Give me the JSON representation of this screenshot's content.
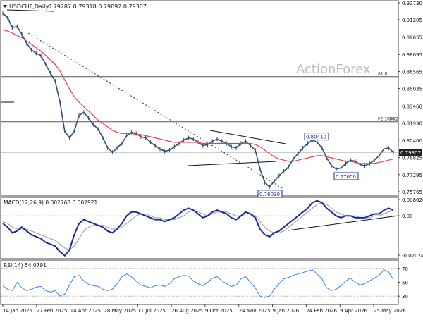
{
  "header": {
    "symbol": "USDCHF,Daily",
    "ohlc": "0.79287 0.79318 0.79092 0.79307"
  },
  "watermark": "ActionForex",
  "price_axis": [
    "0.92730",
    "0.91205",
    "0.89655",
    "0.88095",
    "0.86565",
    "0.85035",
    "0.83460",
    "0.81930",
    "0.80400",
    "0.78825",
    "0.77295",
    "0.75765"
  ],
  "current_price": "0.79307",
  "levels": [
    {
      "label": "61.8",
      "price": 0.861
    },
    {
      "label": "FE 100.0",
      "price": 0.8205
    },
    {
      "label": "38.2",
      "price": 0.8205
    }
  ],
  "markers": [
    {
      "label": "0.80410",
      "price": 0.8041
    },
    {
      "label": "0.77600",
      "price": 0.776
    },
    {
      "label": "0.76030",
      "price": 0.7603
    }
  ],
  "macd": {
    "title": "MACD(12,26,9) 0.002768 0.002921",
    "axis": [
      "0.008626",
      "0.00",
      "-0.020745"
    ]
  },
  "rsi": {
    "title": "RSI(14) 54.0791",
    "axis": [
      "70",
      "50",
      "30"
    ]
  },
  "date_axis": [
    "14 Jan 2025",
    "27 Feb 2025",
    "14 Apr 2025",
    "28 May 2025",
    "11 Jul 2025",
    "26 Aug 2025",
    "9 Oct 2025",
    "24 Nov 2025",
    "9 Jan 2026",
    "24 Feb 2026",
    "9 Apr 2026",
    "25 May 2026"
  ],
  "colors": {
    "price_bars": "#2f4f6f",
    "moving_average": "#e8394a",
    "macd_line": "#1a2a9a",
    "signal_line": "#999999",
    "rsi_line": "#3a7fe0",
    "label_box": "#1a2a9a"
  },
  "chart_data": {
    "type": "line",
    "series": [
      {
        "values": [
          0.918,
          0.914,
          0.905,
          0.906,
          0.899,
          0.891,
          0.885,
          0.882,
          0.88,
          0.872,
          0.864,
          0.857,
          0.838,
          0.812,
          0.806,
          0.812,
          0.826,
          0.829,
          0.824,
          0.818,
          0.814,
          0.806,
          0.797,
          0.793,
          0.797,
          0.801,
          0.808,
          0.811,
          0.81,
          0.807,
          0.806,
          0.802,
          0.799,
          0.796,
          0.794,
          0.795,
          0.798,
          0.801,
          0.804,
          0.806,
          0.805,
          0.802,
          0.799,
          0.8,
          0.803,
          0.805,
          0.803,
          0.801,
          0.798,
          0.797,
          0.801,
          0.803,
          0.799,
          0.795,
          0.778,
          0.766,
          0.762,
          0.767,
          0.772,
          0.776,
          0.78,
          0.787,
          0.792,
          0.797,
          0.801,
          0.804,
          0.802,
          0.797,
          0.788,
          0.781,
          0.778,
          0.779,
          0.783,
          0.786,
          0.785,
          0.782,
          0.781,
          0.783,
          0.786,
          0.79,
          0.796,
          0.797,
          0.793
        ]
      },
      {
        "values": [
          0.903,
          0.902,
          0.9,
          0.898,
          0.896,
          0.893,
          0.89,
          0.887,
          0.884,
          0.88,
          0.876,
          0.872,
          0.866,
          0.858,
          0.85,
          0.843,
          0.838,
          0.834,
          0.83,
          0.826,
          0.822,
          0.819,
          0.816,
          0.813,
          0.811,
          0.81,
          0.81,
          0.81,
          0.809,
          0.809,
          0.808,
          0.807,
          0.806,
          0.805,
          0.804,
          0.803,
          0.802,
          0.802,
          0.802,
          0.802,
          0.802,
          0.802,
          0.801,
          0.801,
          0.801,
          0.801,
          0.801,
          0.801,
          0.801,
          0.801,
          0.801,
          0.801,
          0.801,
          0.8,
          0.798,
          0.795,
          0.792,
          0.789,
          0.787,
          0.786,
          0.785,
          0.785,
          0.786,
          0.787,
          0.788,
          0.789,
          0.79,
          0.79,
          0.789,
          0.788,
          0.787,
          0.786,
          0.785,
          0.785,
          0.784,
          0.783,
          0.783,
          0.783,
          0.783,
          0.784,
          0.785,
          0.786,
          0.787
        ]
      }
    ],
    "macd": [
      -0.004,
      -0.006,
      -0.009,
      -0.008,
      -0.006,
      -0.008,
      -0.01,
      -0.011,
      -0.012,
      -0.014,
      -0.015,
      -0.016,
      -0.019,
      -0.021,
      -0.018,
      -0.01,
      -0.004,
      -0.002,
      -0.003,
      -0.004,
      -0.005,
      -0.006,
      -0.008,
      -0.009,
      -0.007,
      -0.004,
      0.0,
      0.002,
      0.002,
      0.001,
      0.0,
      -0.001,
      -0.002,
      -0.002,
      -0.003,
      -0.002,
      -0.001,
      0.001,
      0.003,
      0.004,
      0.003,
      0.001,
      -0.001,
      0.0,
      0.002,
      0.003,
      0.002,
      0.001,
      -0.001,
      -0.002,
      0.0,
      0.002,
      0.001,
      -0.001,
      -0.007,
      -0.01,
      -0.011,
      -0.009,
      -0.008,
      -0.006,
      -0.004,
      -0.002,
      0.0,
      0.002,
      0.004,
      0.007,
      0.008,
      0.007,
      0.004,
      0.002,
      0.0,
      -0.001,
      0.0,
      0.0,
      -0.001,
      -0.001,
      -0.001,
      0.0,
      0.001,
      0.001,
      0.003,
      0.004,
      0.003
    ],
    "macd_signal": [
      -0.003,
      -0.004,
      -0.006,
      -0.007,
      -0.007,
      -0.007,
      -0.008,
      -0.009,
      -0.01,
      -0.011,
      -0.012,
      -0.013,
      -0.015,
      -0.017,
      -0.018,
      -0.016,
      -0.012,
      -0.008,
      -0.006,
      -0.005,
      -0.005,
      -0.005,
      -0.006,
      -0.007,
      -0.007,
      -0.006,
      -0.004,
      -0.002,
      0.0,
      0.001,
      0.001,
      0.0,
      -0.001,
      -0.001,
      -0.002,
      -0.002,
      -0.002,
      -0.001,
      0.0,
      0.002,
      0.003,
      0.002,
      0.001,
      0.0,
      0.001,
      0.002,
      0.002,
      0.002,
      0.001,
      0.0,
      0.0,
      0.001,
      0.001,
      0.0,
      -0.003,
      -0.006,
      -0.008,
      -0.009,
      -0.009,
      -0.008,
      -0.006,
      -0.004,
      -0.002,
      0.0,
      0.002,
      0.004,
      0.006,
      0.007,
      0.006,
      0.004,
      0.002,
      0.001,
      0.0,
      0.0,
      0.0,
      -0.001,
      -0.001,
      -0.001,
      0.0,
      0.0,
      0.001,
      0.002,
      0.003
    ],
    "rsi": [
      45,
      40,
      38,
      50,
      42,
      38,
      40,
      43,
      44,
      38,
      36,
      38,
      30,
      33,
      46,
      58,
      60,
      52,
      47,
      45,
      44,
      40,
      38,
      40,
      48,
      58,
      62,
      58,
      52,
      46,
      44,
      42,
      45,
      46,
      44,
      48,
      55,
      58,
      60,
      59,
      52,
      48,
      45,
      50,
      56,
      58,
      52,
      48,
      44,
      46,
      55,
      58,
      50,
      42,
      30,
      28,
      30,
      40,
      48,
      55,
      57,
      60,
      62,
      64,
      66,
      68,
      62,
      55,
      42,
      38,
      40,
      45,
      52,
      56,
      50,
      46,
      48,
      52,
      56,
      60,
      68,
      65,
      54
    ]
  }
}
